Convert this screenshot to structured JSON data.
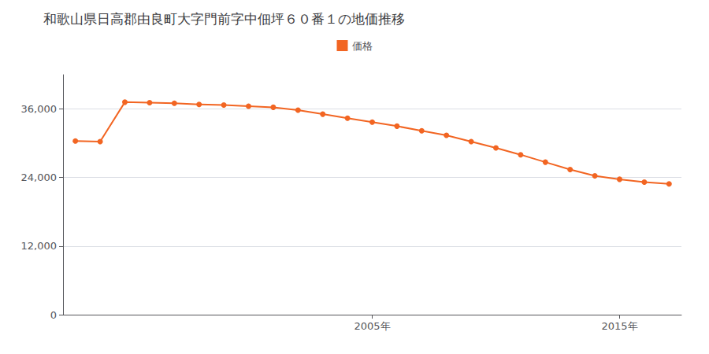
{
  "chart_data": {
    "type": "line",
    "title": "和歌山県日高郡由良町大字門前字中佃坪６０番１の地価推移",
    "x": [
      1993,
      1994,
      1995,
      1996,
      1997,
      1998,
      1999,
      2000,
      2001,
      2002,
      2003,
      2004,
      2005,
      2006,
      2007,
      2008,
      2009,
      2010,
      2011,
      2012,
      2013,
      2014,
      2015,
      2016,
      2017
    ],
    "series": [
      {
        "name": "価格",
        "color": "#f26522",
        "marker": "circle",
        "values": [
          30400,
          30300,
          37200,
          37100,
          37000,
          36800,
          36700,
          36500,
          36300,
          35800,
          35100,
          34400,
          33700,
          33000,
          32200,
          31400,
          30300,
          29200,
          28000,
          26700,
          25400,
          24300,
          23700,
          23200,
          22900
        ]
      }
    ],
    "xlim": [
      1992.5,
      2017.5
    ],
    "xticks": [
      {
        "value": 2005,
        "label": "2005年"
      },
      {
        "value": 2015,
        "label": "2015年"
      }
    ],
    "ylim": [
      0,
      42000
    ],
    "yticks": [
      0,
      {
        "value": 12000,
        "label": "12,000"
      },
      {
        "value": 24000,
        "label": "24,000"
      },
      {
        "value": 36000,
        "label": "36,000"
      }
    ],
    "grid": true,
    "legend": "top"
  }
}
